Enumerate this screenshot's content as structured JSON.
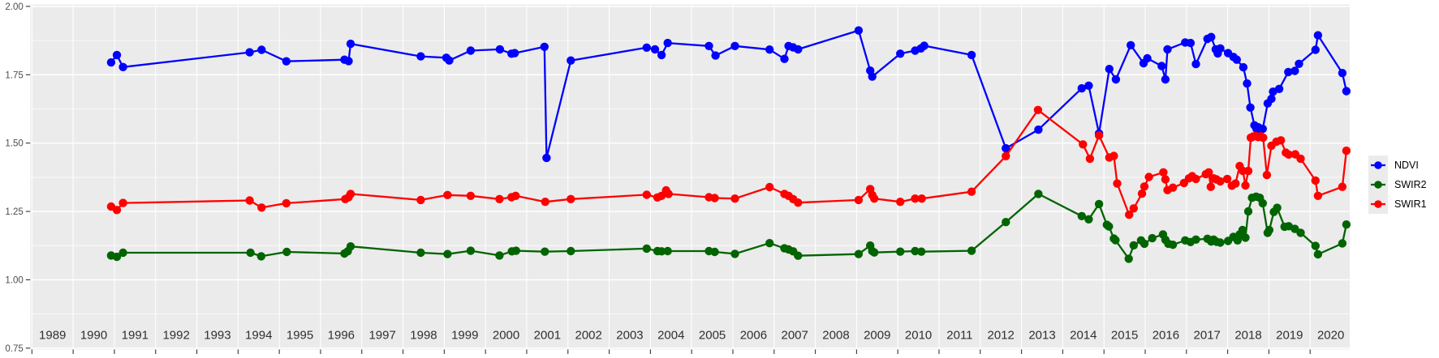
{
  "legend": {
    "items": [
      {
        "label": "NDVI",
        "color": "#0000FF"
      },
      {
        "label": "SWIR2",
        "color": "#006400"
      },
      {
        "label": "SWIR1",
        "color": "#FF0000"
      }
    ]
  },
  "chart_data": {
    "type": "line",
    "title": "",
    "xlabel": "",
    "ylabel": "",
    "grid": true,
    "legend_position": "right",
    "panel_bg": "#EBEBEB",
    "grid_color": "#FFFFFF",
    "tick_color": "#333333",
    "y_label_color": "#4D4D4D",
    "x_label_color": "#303030",
    "x_range": [
      1988.96,
      2020.96
    ],
    "y_range": [
      0.745,
      2.007
    ],
    "x_ticks": [
      1989,
      1990,
      1991,
      1992,
      1993,
      1994,
      1995,
      1996,
      1997,
      1998,
      1999,
      2000,
      2001,
      2002,
      2003,
      2004,
      2005,
      2006,
      2007,
      2008,
      2009,
      2010,
      2011,
      2012,
      2013,
      2014,
      2015,
      2016,
      2017,
      2018,
      2019,
      2020
    ],
    "y_ticks": [
      {
        "label": "2.00",
        "value": 2.0
      },
      {
        "label": "1.75",
        "value": 1.75
      },
      {
        "label": "1.50",
        "value": 1.5
      },
      {
        "label": "1.25",
        "value": 1.25
      },
      {
        "label": "1.00",
        "value": 1.0
      },
      {
        "label": "0.75",
        "value": 0.75
      }
    ],
    "y_minor": [
      1.875,
      1.625,
      1.375,
      1.125,
      0.875
    ],
    "series": [
      {
        "name": "NDVI",
        "color": "#0000FF",
        "points": [
          [
            1990.92,
            1.795
          ],
          [
            1991.06,
            1.822
          ],
          [
            1991.21,
            1.778
          ],
          [
            1994.28,
            1.832
          ],
          [
            1994.57,
            1.841
          ],
          [
            1995.17,
            1.799
          ],
          [
            1996.58,
            1.805
          ],
          [
            1996.68,
            1.8
          ],
          [
            1996.73,
            1.863
          ],
          [
            1998.43,
            1.817
          ],
          [
            1999.05,
            1.812
          ],
          [
            1999.12,
            1.802
          ],
          [
            1999.64,
            1.838
          ],
          [
            2000.35,
            1.843
          ],
          [
            2000.63,
            1.827
          ],
          [
            2000.71,
            1.829
          ],
          [
            2001.43,
            1.852
          ],
          [
            2001.48,
            1.446
          ],
          [
            2002.07,
            1.802
          ],
          [
            2003.91,
            1.849
          ],
          [
            2004.11,
            1.843
          ],
          [
            2004.27,
            1.822
          ],
          [
            2004.42,
            1.866
          ],
          [
            2005.42,
            1.855
          ],
          [
            2005.58,
            1.82
          ],
          [
            2006.05,
            1.855
          ],
          [
            2006.89,
            1.842
          ],
          [
            2007.25,
            1.808
          ],
          [
            2007.35,
            1.855
          ],
          [
            2007.46,
            1.85
          ],
          [
            2007.58,
            1.843
          ],
          [
            2009.05,
            1.912
          ],
          [
            2009.33,
            1.765
          ],
          [
            2009.38,
            1.743
          ],
          [
            2010.06,
            1.827
          ],
          [
            2010.42,
            1.838
          ],
          [
            2010.56,
            1.846
          ],
          [
            2010.64,
            1.856
          ],
          [
            2011.79,
            1.822
          ],
          [
            2012.62,
            1.481
          ],
          [
            2013.41,
            1.549
          ],
          [
            2014.46,
            1.7
          ],
          [
            2014.63,
            1.71
          ],
          [
            2014.88,
            1.535
          ],
          [
            2015.13,
            1.771
          ],
          [
            2015.29,
            1.733
          ],
          [
            2015.65,
            1.858
          ],
          [
            2015.96,
            1.792
          ],
          [
            2016.05,
            1.81
          ],
          [
            2016.4,
            1.782
          ],
          [
            2016.49,
            1.733
          ],
          [
            2016.54,
            1.843
          ],
          [
            2016.97,
            1.868
          ],
          [
            2017.1,
            1.866
          ],
          [
            2017.23,
            1.789
          ],
          [
            2017.51,
            1.881
          ],
          [
            2017.6,
            1.888
          ],
          [
            2017.71,
            1.843
          ],
          [
            2017.76,
            1.828
          ],
          [
            2017.82,
            1.846
          ],
          [
            2018.01,
            1.829
          ],
          [
            2018.14,
            1.815
          ],
          [
            2018.22,
            1.805
          ],
          [
            2018.38,
            1.777
          ],
          [
            2018.47,
            1.718
          ],
          [
            2018.55,
            1.63
          ],
          [
            2018.65,
            1.565
          ],
          [
            2018.7,
            1.552
          ],
          [
            2018.74,
            1.558
          ],
          [
            2018.79,
            1.548
          ],
          [
            2018.85,
            1.552
          ],
          [
            2018.97,
            1.645
          ],
          [
            2019.06,
            1.662
          ],
          [
            2019.1,
            1.688
          ],
          [
            2019.25,
            1.698
          ],
          [
            2019.47,
            1.76
          ],
          [
            2019.63,
            1.764
          ],
          [
            2019.73,
            1.79
          ],
          [
            2020.13,
            1.841
          ],
          [
            2020.19,
            1.894
          ],
          [
            2020.78,
            1.756
          ],
          [
            2020.88,
            1.69
          ]
        ]
      },
      {
        "name": "SWIR2",
        "color": "#006400",
        "points": [
          [
            1990.92,
            1.089
          ],
          [
            1991.06,
            1.084
          ],
          [
            1991.21,
            1.099
          ],
          [
            1994.3,
            1.099
          ],
          [
            1994.56,
            1.086
          ],
          [
            1995.18,
            1.102
          ],
          [
            1996.58,
            1.096
          ],
          [
            1996.66,
            1.104
          ],
          [
            1996.73,
            1.122
          ],
          [
            1998.43,
            1.099
          ],
          [
            1999.08,
            1.094
          ],
          [
            1999.64,
            1.106
          ],
          [
            2000.34,
            1.089
          ],
          [
            2000.64,
            1.104
          ],
          [
            2000.74,
            1.106
          ],
          [
            2001.44,
            1.103
          ],
          [
            2002.07,
            1.105
          ],
          [
            2003.91,
            1.114
          ],
          [
            2004.17,
            1.105
          ],
          [
            2004.27,
            1.104
          ],
          [
            2004.42,
            1.105
          ],
          [
            2005.42,
            1.105
          ],
          [
            2005.56,
            1.102
          ],
          [
            2006.05,
            1.095
          ],
          [
            2006.89,
            1.134
          ],
          [
            2007.25,
            1.115
          ],
          [
            2007.35,
            1.111
          ],
          [
            2007.46,
            1.104
          ],
          [
            2007.58,
            1.088
          ],
          [
            2009.05,
            1.094
          ],
          [
            2009.33,
            1.125
          ],
          [
            2009.38,
            1.105
          ],
          [
            2009.43,
            1.1
          ],
          [
            2010.06,
            1.103
          ],
          [
            2010.42,
            1.105
          ],
          [
            2010.57,
            1.103
          ],
          [
            2011.79,
            1.106
          ],
          [
            2012.62,
            1.211
          ],
          [
            2013.41,
            1.314
          ],
          [
            2014.46,
            1.233
          ],
          [
            2014.63,
            1.221
          ],
          [
            2014.88,
            1.277
          ],
          [
            2015.07,
            1.201
          ],
          [
            2015.12,
            1.195
          ],
          [
            2015.24,
            1.151
          ],
          [
            2015.28,
            1.145
          ],
          [
            2015.6,
            1.077
          ],
          [
            2015.72,
            1.126
          ],
          [
            2015.9,
            1.144
          ],
          [
            2015.98,
            1.132
          ],
          [
            2016.17,
            1.152
          ],
          [
            2016.43,
            1.166
          ],
          [
            2016.49,
            1.146
          ],
          [
            2016.56,
            1.132
          ],
          [
            2016.67,
            1.128
          ],
          [
            2016.97,
            1.144
          ],
          [
            2017.1,
            1.138
          ],
          [
            2017.23,
            1.147
          ],
          [
            2017.51,
            1.15
          ],
          [
            2017.6,
            1.14
          ],
          [
            2017.66,
            1.147
          ],
          [
            2017.73,
            1.139
          ],
          [
            2017.82,
            1.136
          ],
          [
            2018.01,
            1.142
          ],
          [
            2018.14,
            1.157
          ],
          [
            2018.24,
            1.144
          ],
          [
            2018.29,
            1.166
          ],
          [
            2018.36,
            1.182
          ],
          [
            2018.43,
            1.154
          ],
          [
            2018.5,
            1.25
          ],
          [
            2018.59,
            1.3
          ],
          [
            2018.69,
            1.304
          ],
          [
            2018.78,
            1.3
          ],
          [
            2018.85,
            1.28
          ],
          [
            2018.97,
            1.172
          ],
          [
            2019.01,
            1.182
          ],
          [
            2019.12,
            1.248
          ],
          [
            2019.2,
            1.263
          ],
          [
            2019.38,
            1.194
          ],
          [
            2019.48,
            1.196
          ],
          [
            2019.63,
            1.186
          ],
          [
            2019.77,
            1.172
          ],
          [
            2020.13,
            1.124
          ],
          [
            2020.19,
            1.093
          ],
          [
            2020.78,
            1.133
          ],
          [
            2020.88,
            1.202
          ]
        ]
      },
      {
        "name": "SWIR1",
        "color": "#FF0000",
        "points": [
          [
            1990.92,
            1.268
          ],
          [
            1991.06,
            1.255
          ],
          [
            1991.21,
            1.281
          ],
          [
            1994.28,
            1.29
          ],
          [
            1994.57,
            1.264
          ],
          [
            1995.17,
            1.28
          ],
          [
            1996.6,
            1.295
          ],
          [
            1996.68,
            1.302
          ],
          [
            1996.73,
            1.314
          ],
          [
            1998.43,
            1.292
          ],
          [
            1999.08,
            1.31
          ],
          [
            1999.64,
            1.307
          ],
          [
            2000.34,
            1.295
          ],
          [
            2000.63,
            1.302
          ],
          [
            2000.73,
            1.307
          ],
          [
            2001.45,
            1.285
          ],
          [
            2002.07,
            1.295
          ],
          [
            2003.91,
            1.311
          ],
          [
            2004.17,
            1.301
          ],
          [
            2004.27,
            1.307
          ],
          [
            2004.38,
            1.327
          ],
          [
            2004.44,
            1.314
          ],
          [
            2005.42,
            1.302
          ],
          [
            2005.56,
            1.299
          ],
          [
            2006.05,
            1.297
          ],
          [
            2006.89,
            1.339
          ],
          [
            2007.25,
            1.314
          ],
          [
            2007.35,
            1.307
          ],
          [
            2007.46,
            1.295
          ],
          [
            2007.58,
            1.282
          ],
          [
            2009.05,
            1.292
          ],
          [
            2009.33,
            1.332
          ],
          [
            2009.38,
            1.31
          ],
          [
            2009.43,
            1.297
          ],
          [
            2010.06,
            1.285
          ],
          [
            2010.42,
            1.297
          ],
          [
            2010.58,
            1.297
          ],
          [
            2011.79,
            1.322
          ],
          [
            2012.62,
            1.452
          ],
          [
            2013.4,
            1.621
          ],
          [
            2014.49,
            1.495
          ],
          [
            2014.66,
            1.443
          ],
          [
            2014.88,
            1.528
          ],
          [
            2015.13,
            1.447
          ],
          [
            2015.24,
            1.453
          ],
          [
            2015.32,
            1.352
          ],
          [
            2015.61,
            1.238
          ],
          [
            2015.72,
            1.261
          ],
          [
            2015.92,
            1.315
          ],
          [
            2015.98,
            1.341
          ],
          [
            2016.09,
            1.376
          ],
          [
            2016.44,
            1.393
          ],
          [
            2016.49,
            1.367
          ],
          [
            2016.54,
            1.328
          ],
          [
            2016.67,
            1.337
          ],
          [
            2016.94,
            1.354
          ],
          [
            2017.06,
            1.371
          ],
          [
            2017.14,
            1.379
          ],
          [
            2017.23,
            1.369
          ],
          [
            2017.47,
            1.386
          ],
          [
            2017.54,
            1.393
          ],
          [
            2017.59,
            1.34
          ],
          [
            2017.66,
            1.371
          ],
          [
            2017.73,
            1.367
          ],
          [
            2017.82,
            1.36
          ],
          [
            2017.99,
            1.369
          ],
          [
            2018.1,
            1.344
          ],
          [
            2018.19,
            1.352
          ],
          [
            2018.29,
            1.416
          ],
          [
            2018.37,
            1.398
          ],
          [
            2018.43,
            1.345
          ],
          [
            2018.5,
            1.398
          ],
          [
            2018.56,
            1.52
          ],
          [
            2018.62,
            1.524
          ],
          [
            2018.68,
            1.526
          ],
          [
            2018.74,
            1.522
          ],
          [
            2018.8,
            1.525
          ],
          [
            2018.86,
            1.52
          ],
          [
            2018.95,
            1.383
          ],
          [
            2019.06,
            1.49
          ],
          [
            2019.18,
            1.505
          ],
          [
            2019.29,
            1.51
          ],
          [
            2019.41,
            1.465
          ],
          [
            2019.48,
            1.458
          ],
          [
            2019.64,
            1.459
          ],
          [
            2019.77,
            1.443
          ],
          [
            2020.13,
            1.363
          ],
          [
            2020.19,
            1.307
          ],
          [
            2020.78,
            1.34
          ],
          [
            2020.88,
            1.472
          ]
        ]
      }
    ]
  }
}
